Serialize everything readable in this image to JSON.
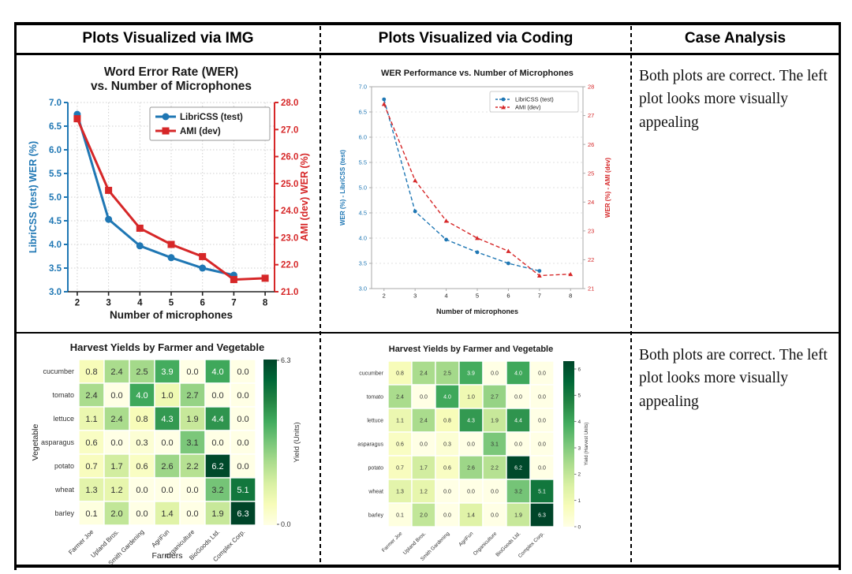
{
  "header": {
    "col_img": "Plots Visualized via IMG",
    "col_coding": "Plots Visualized via Coding",
    "col_case": "Case Analysis"
  },
  "rows": [
    {
      "case_analysis": "Both plots are correct. The left\nplot looks more visually\nappealing"
    },
    {
      "case_analysis": "Both plots are correct. The left\nplot looks more visually\nappealing"
    }
  ],
  "colors": {
    "libricss_blue": "#1f77b4",
    "ami_red": "#d62728",
    "heatmap_colormap_ylgn": [
      "#ffffe5",
      "#f7fcb9",
      "#d9f0a3",
      "#addd8e",
      "#78c679",
      "#41ab5d",
      "#238443",
      "#006837",
      "#004529"
    ]
  },
  "chart_data": [
    {
      "id": "wer_img",
      "type": "line",
      "title": "Word Error Rate (WER)\nvs. Number of Microphones",
      "xlabel": "Number of microphones",
      "x_ticks": [
        "2",
        "3",
        "4",
        "5",
        "6",
        "7",
        "8"
      ],
      "left_axis": {
        "label": "LibriCSS (test) WER (%)",
        "min": 3.0,
        "max": 7.0,
        "ticks": [
          3.0,
          3.5,
          4.0,
          4.5,
          5.0,
          5.5,
          6.0,
          6.5,
          7.0
        ],
        "tick_labels": [
          "3.0",
          "3.5",
          "4.0",
          "4.5",
          "5.0",
          "5.5",
          "6.0",
          "6.5",
          "7.0"
        ]
      },
      "right_axis": {
        "label": "AMI (dev) WER (%)",
        "min": 21.0,
        "max": 28.0,
        "ticks": [
          21,
          22,
          23,
          24,
          25,
          26,
          27,
          28
        ],
        "tick_labels": [
          "21.0",
          "22.0",
          "23.0",
          "24.0",
          "25.0",
          "26.0",
          "27.0",
          "28.0"
        ]
      },
      "series": [
        {
          "name": "LibriCSS (test)",
          "axis": "left",
          "color": "#1f77b4",
          "marker": "circle",
          "x": [
            2,
            3,
            4,
            5,
            6,
            7
          ],
          "values": [
            6.75,
            4.53,
            3.97,
            3.72,
            3.5,
            3.35
          ]
        },
        {
          "name": "AMI (dev)",
          "axis": "right",
          "color": "#d62728",
          "marker": "square",
          "x": [
            2,
            3,
            4,
            5,
            6,
            7,
            8
          ],
          "values": [
            27.4,
            24.75,
            23.35,
            22.75,
            22.3,
            21.45,
            21.5
          ]
        }
      ],
      "legend": [
        "LibriCSS (test)",
        "AMI (dev)"
      ]
    },
    {
      "id": "wer_code",
      "type": "line",
      "title": "WER Performance vs. Number of Microphones",
      "xlabel": "Number of microphones",
      "x_ticks": [
        "2",
        "3",
        "4",
        "5",
        "6",
        "7",
        "8"
      ],
      "left_axis": {
        "label": "WER (%) - LibriCSS (test)",
        "min": 3.0,
        "max": 7.0,
        "ticks": [
          3.0,
          3.5,
          4.0,
          4.5,
          5.0,
          5.5,
          6.0,
          6.5,
          7.0
        ],
        "tick_labels": [
          "3.0",
          "3.5",
          "4.0",
          "4.5",
          "5.0",
          "5.5",
          "6.0",
          "6.5",
          "7.0"
        ]
      },
      "right_axis": {
        "label": "WER (%) - AMI (dev)",
        "min": 21.0,
        "max": 28.0,
        "ticks": [
          21,
          22,
          23,
          24,
          25,
          26,
          27,
          28
        ],
        "tick_labels": [
          "21",
          "22",
          "23",
          "24",
          "25",
          "26",
          "27",
          "28"
        ]
      },
      "series": [
        {
          "name": "LibriCSS (test)",
          "axis": "left",
          "color": "#1f77b4",
          "marker": "circle",
          "x": [
            2,
            3,
            4,
            5,
            6,
            7
          ],
          "values": [
            6.75,
            4.53,
            3.97,
            3.72,
            3.5,
            3.35
          ]
        },
        {
          "name": "AMI (dev)",
          "axis": "right",
          "color": "#d62728",
          "marker": "triangle",
          "x": [
            2,
            3,
            4,
            5,
            6,
            7,
            8
          ],
          "values": [
            27.4,
            24.75,
            23.35,
            22.75,
            22.3,
            21.45,
            21.5
          ]
        }
      ],
      "legend": [
        "LibriCSS (test)",
        "AMI (dev)"
      ]
    },
    {
      "id": "harvest_img",
      "type": "heatmap",
      "title": "Harvest Yields by Farmer and Vegetable",
      "xlabel": "Farmers",
      "ylabel": "Vegetable",
      "row_labels": [
        "cucumber",
        "tomato",
        "lettuce",
        "asparagus",
        "potato",
        "wheat",
        "barley"
      ],
      "col_labels": [
        "Farmer Joe",
        "Upland Bros.",
        "Smith Gardening",
        "AgriFun",
        "Organiculture",
        "BioGoods Ltd.",
        "Complex Corp."
      ],
      "values": [
        [
          0.8,
          2.4,
          2.5,
          3.9,
          0.0,
          4.0,
          0.0
        ],
        [
          2.4,
          0.0,
          4.0,
          1.0,
          2.7,
          0.0,
          0.0
        ],
        [
          1.1,
          2.4,
          0.8,
          4.3,
          1.9,
          4.4,
          0.0
        ],
        [
          0.6,
          0.0,
          0.3,
          0.0,
          3.1,
          0.0,
          0.0
        ],
        [
          0.7,
          1.7,
          0.6,
          2.6,
          2.2,
          6.2,
          0.0
        ],
        [
          1.3,
          1.2,
          0.0,
          0.0,
          0.0,
          3.2,
          5.1
        ],
        [
          0.1,
          2.0,
          0.0,
          1.4,
          0.0,
          1.9,
          6.3
        ]
      ],
      "vmin": 0.0,
      "vmax": 6.3,
      "colorbar": {
        "label": "Yield (Units)",
        "tick_labels": [
          "6.3",
          "0.0"
        ]
      }
    },
    {
      "id": "harvest_code",
      "type": "heatmap",
      "title": "Harvest Yields by Farmer and Vegetable",
      "xlabel": "",
      "ylabel": "",
      "row_labels": [
        "cucumber",
        "tomato",
        "lettuce",
        "asparagus",
        "potato",
        "wheat",
        "barley"
      ],
      "col_labels": [
        "Farmer Joe",
        "Upland Bros.",
        "Smith Gardening",
        "AgriFun",
        "Organiculture",
        "BioGoods Ltd.",
        "Complex Corp."
      ],
      "values": [
        [
          0.8,
          2.4,
          2.5,
          3.9,
          0.0,
          4.0,
          0.0
        ],
        [
          2.4,
          0.0,
          4.0,
          1.0,
          2.7,
          0.0,
          0.0
        ],
        [
          1.1,
          2.4,
          0.8,
          4.3,
          1.9,
          4.4,
          0.0
        ],
        [
          0.6,
          0.0,
          0.3,
          0.0,
          3.1,
          0.0,
          0.0
        ],
        [
          0.7,
          1.7,
          0.6,
          2.6,
          2.2,
          6.2,
          0.0
        ],
        [
          1.3,
          1.2,
          0.0,
          0.0,
          0.0,
          3.2,
          5.1
        ],
        [
          0.1,
          2.0,
          0.0,
          1.4,
          0.0,
          1.9,
          6.3
        ]
      ],
      "vmin": 0.0,
      "vmax": 6.3,
      "colorbar": {
        "label": "Yield (Harvest Units)",
        "tick_labels": [
          "0",
          "1",
          "2",
          "3",
          "4",
          "5",
          "6"
        ]
      }
    }
  ]
}
